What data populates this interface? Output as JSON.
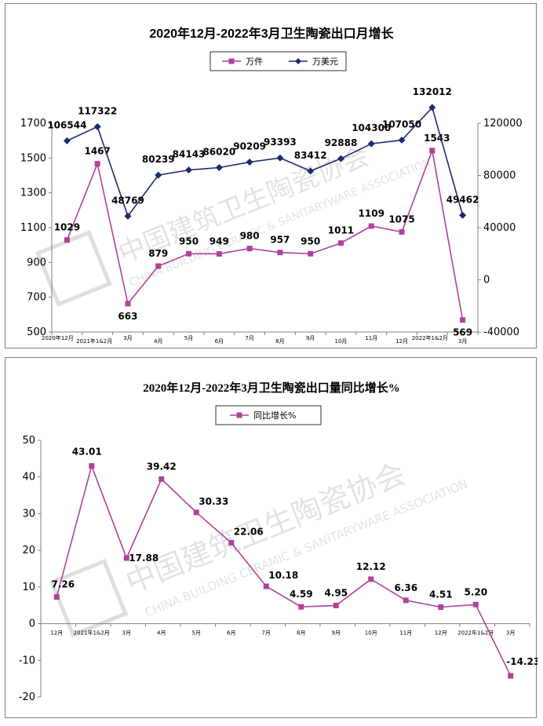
{
  "charts": [
    {
      "title": "2020年12月-2022年3月卫生陶瓷出口月增长",
      "legend": [
        "万件",
        "万美元"
      ]
    },
    {
      "title": "2020年12月-2022年3月卫生陶瓷出口量同比增长%",
      "legend": [
        "同比增长%"
      ]
    }
  ],
  "watermark": {
    "cn": "中国建筑卫生陶瓷协会",
    "en": "CHINA BUILDING CERAMIC & SANITARYWARE ASSOCIATION"
  },
  "colors": {
    "pink": "#b1409a",
    "navy": "#1c2a6e",
    "axis": "#808080"
  },
  "chart_data": [
    {
      "type": "line",
      "categories": [
        "2020年12月",
        "2021年1&2月",
        "3月",
        "4月",
        "5月",
        "6月",
        "7月",
        "8月",
        "9月",
        "10月",
        "11月",
        "12月",
        "2022年1&2月",
        "3月"
      ],
      "series": [
        {
          "name": "万件",
          "axis": "left",
          "color": "#b1409a",
          "marker": "square",
          "values": [
            1029,
            1467,
            663,
            879,
            950,
            949,
            980,
            957,
            950,
            1011,
            1109,
            1075,
            1543,
            569
          ],
          "labels": [
            "1029",
            "1467",
            "663",
            "879",
            "950",
            "949",
            "980",
            "957",
            "950",
            "1011",
            "1109",
            "1075",
            "1543",
            "569"
          ]
        },
        {
          "name": "万美元",
          "axis": "right",
          "color": "#1c2a6e",
          "marker": "diamond",
          "values": [
            106544,
            117322,
            48769,
            80239,
            84143,
            86020,
            90209,
            93393,
            83412,
            92888,
            104300,
            107050,
            132012,
            49462
          ],
          "labels": [
            "106544",
            "117322",
            "48769",
            "80239",
            "84143",
            "86020",
            "90209",
            "93393",
            "83412",
            "92888",
            "104300",
            "107050",
            "132012",
            "49462"
          ]
        }
      ],
      "ylim_left": [
        500,
        1700
      ],
      "yticks_left": [
        500,
        700,
        900,
        1100,
        1300,
        1500,
        1700
      ],
      "ylim_right": [
        -40000,
        120000
      ],
      "yticks_right": [
        -40000,
        0,
        40000,
        80000,
        120000
      ],
      "legend_position": "top-center",
      "grid": false
    },
    {
      "type": "line",
      "categories": [
        "12月",
        "2021年1&2月",
        "3月",
        "4月",
        "5月",
        "6月",
        "7月",
        "8月",
        "9月",
        "10月",
        "11月",
        "12月",
        "2022年1&2月",
        "3月"
      ],
      "series": [
        {
          "name": "同比增长%",
          "color": "#b1409a",
          "marker": "square",
          "values": [
            7.26,
            43.01,
            17.88,
            39.42,
            30.33,
            22.06,
            10.18,
            4.59,
            4.95,
            12.12,
            6.36,
            4.51,
            5.2,
            -14.23
          ],
          "labels": [
            "7.26",
            "43.01",
            "17.88",
            "39.42",
            "30.33",
            "22.06",
            "10.18",
            "4.59",
            "4.95",
            "12.12",
            "6.36",
            "4.51",
            "5.20",
            "-14.23"
          ]
        }
      ],
      "ylim": [
        -20,
        50
      ],
      "yticks": [
        -20,
        -10,
        0,
        10,
        20,
        30,
        40,
        50
      ],
      "legend_position": "top-center",
      "grid": false
    }
  ]
}
